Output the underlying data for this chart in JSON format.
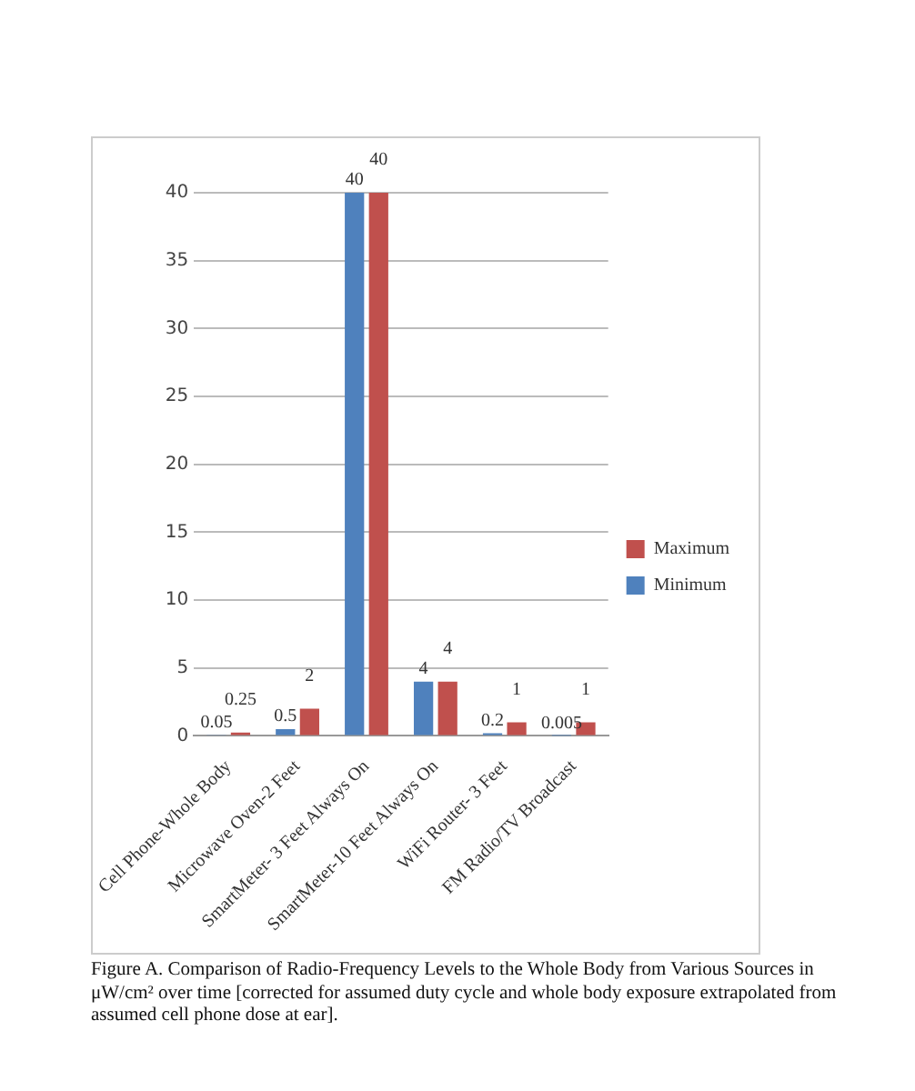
{
  "chart_data": {
    "type": "bar",
    "categories": [
      "Cell Phone-Whole Body",
      "Microwave Oven-2 Feet",
      "SmartMeter- 3 Feet Always On",
      "SmartMeter-10 Feet Always On",
      "WiFi Router- 3 Feet",
      "FM Radio/TV Broadcast"
    ],
    "series": [
      {
        "name": "Minimum",
        "color": "#4f81bd",
        "values": [
          0.05,
          0.5,
          40,
          4,
          0.2,
          0.005
        ]
      },
      {
        "name": "Maximum",
        "color": "#c0504d",
        "values": [
          0.25,
          2,
          40,
          4,
          1,
          1
        ]
      }
    ],
    "ylim": [
      0,
      40
    ],
    "yticks": [
      0,
      5,
      10,
      15,
      20,
      25,
      30,
      35,
      40
    ],
    "grid": "y",
    "legend": "right",
    "data_labels": true,
    "annotations": [
      "Figure A. Comparison of Radio-Frequency Levels to the Whole Body from Various Sources in μW/cm² over time [corrected for assumed duty cycle and whole body exposure extrapolated from assumed cell phone dose at ear]."
    ]
  }
}
